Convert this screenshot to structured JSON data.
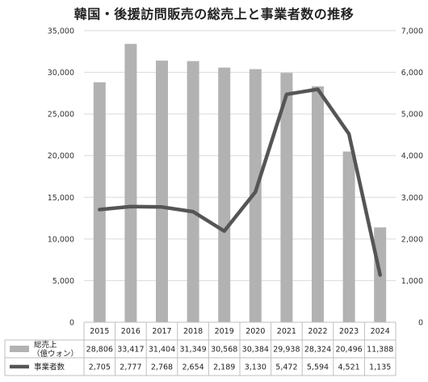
{
  "chart_data": {
    "type": "bar",
    "title": "韓国・後援訪問販売の総売上と事業者数の推移",
    "categories": [
      "2015",
      "2016",
      "2017",
      "2018",
      "2019",
      "2020",
      "2021",
      "2022",
      "2023",
      "2024"
    ],
    "series": [
      {
        "name": "総売上\n（億ウォン）",
        "type": "bar",
        "axis": "left",
        "color": "#b2b2b2",
        "values": [
          28806,
          33417,
          31404,
          31349,
          30568,
          30384,
          29938,
          28324,
          20496,
          11388
        ],
        "labels": [
          "28,806",
          "33,417",
          "31,404",
          "31,349",
          "30,568",
          "30,384",
          "29,938",
          "28,324",
          "20,496",
          "11,388"
        ]
      },
      {
        "name": "事業者数",
        "type": "line",
        "axis": "right",
        "color": "#555555",
        "values": [
          2705,
          2777,
          2768,
          2654,
          2189,
          3130,
          5472,
          5594,
          4521,
          1135
        ],
        "labels": [
          "2,705",
          "2,777",
          "2,768",
          "2,654",
          "2,189",
          "3,130",
          "5,472",
          "5,594",
          "4,521",
          "1,135"
        ]
      }
    ],
    "ylim_left": [
      0,
      35000
    ],
    "ylim_right": [
      0,
      7000
    ],
    "yticks_left": [
      "0",
      "5,000",
      "10,000",
      "15,000",
      "20,000",
      "25,000",
      "30,000",
      "35,000"
    ],
    "yticks_right": [
      "0",
      "1,000",
      "2,000",
      "3,000",
      "4,000",
      "5,000",
      "6,000",
      "7,000"
    ],
    "grid": true,
    "legend": "data-table-bottom"
  }
}
